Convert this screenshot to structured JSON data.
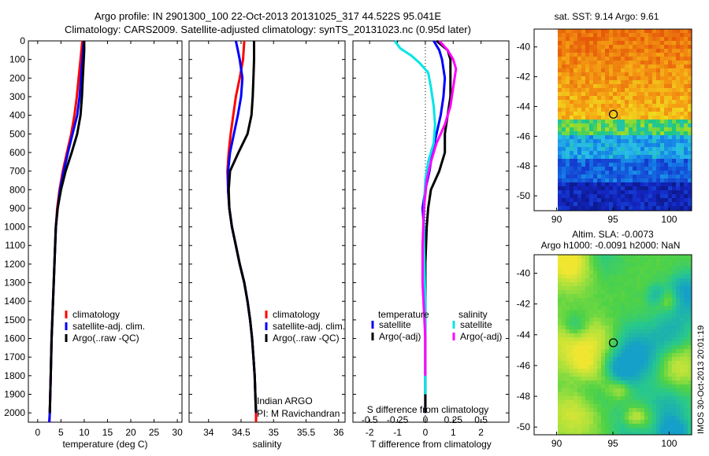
{
  "header": {
    "title_line1": "Argo profile: IN 2901300_100 22-Oct-2013 20131025_317 44.522S 95.041E",
    "title_line2": "Climatology: CARS2009. Satellite-adjusted climatology: synTS_20131023.nc (0.95d later)"
  },
  "footer": {
    "vertical_text": "IMOS 30-Oct-2013 20:01:19"
  },
  "colors": {
    "climatology": "#ff0000",
    "satellite_clim": "#0000ff",
    "argo": "#000000",
    "sal_satellite": "#00e5e5",
    "sal_argo": "#ff00ff"
  },
  "chart_data": [
    {
      "type": "line",
      "id": "temperature",
      "xlabel": "temperature (deg C)",
      "ylabel": "",
      "xlim": [
        -2,
        31
      ],
      "ylim": [
        2050,
        0
      ],
      "xticks": [
        0,
        5,
        10,
        15,
        20,
        25,
        30
      ],
      "yticks": [
        0,
        100,
        200,
        300,
        400,
        500,
        600,
        700,
        800,
        900,
        1000,
        1100,
        1200,
        1300,
        1400,
        1500,
        1600,
        1700,
        1800,
        1900,
        2000
      ],
      "legend": [
        "climatology",
        "satellite-adj. clim.",
        "Argo(..raw -QC)"
      ],
      "series": [
        {
          "name": "climatology",
          "color": "#ff0000",
          "points": [
            [
              9.6,
              0
            ],
            [
              9.2,
              100
            ],
            [
              8.8,
              200
            ],
            [
              8.4,
              300
            ],
            [
              7.9,
              400
            ],
            [
              7.2,
              500
            ],
            [
              6.3,
              600
            ],
            [
              5.4,
              700
            ],
            [
              4.7,
              800
            ],
            [
              4.2,
              900
            ],
            [
              3.9,
              1000
            ],
            [
              3.6,
              1200
            ],
            [
              3.3,
              1400
            ],
            [
              3.0,
              1600
            ],
            [
              2.8,
              1800
            ],
            [
              2.6,
              2000
            ],
            [
              2.5,
              2050
            ]
          ]
        },
        {
          "name": "satellite-adj. clim.",
          "color": "#0000ff",
          "points": [
            [
              9.9,
              0
            ],
            [
              9.6,
              100
            ],
            [
              9.3,
              200
            ],
            [
              9.0,
              300
            ],
            [
              8.5,
              400
            ],
            [
              7.5,
              500
            ],
            [
              6.5,
              600
            ],
            [
              5.6,
              700
            ],
            [
              4.8,
              800
            ],
            [
              4.3,
              900
            ],
            [
              3.9,
              1000
            ],
            [
              3.6,
              1200
            ],
            [
              3.3,
              1400
            ],
            [
              3.0,
              1600
            ],
            [
              2.8,
              1800
            ],
            [
              2.6,
              2000
            ],
            [
              2.5,
              2050
            ]
          ]
        },
        {
          "name": "Argo(..raw -QC)",
          "color": "#000000",
          "points": [
            [
              10.0,
              0
            ],
            [
              10.0,
              50
            ],
            [
              9.9,
              100
            ],
            [
              9.7,
              200
            ],
            [
              9.5,
              300
            ],
            [
              9.2,
              400
            ],
            [
              8.5,
              500
            ],
            [
              7.3,
              600
            ],
            [
              6.0,
              700
            ],
            [
              5.0,
              800
            ],
            [
              4.3,
              900
            ],
            [
              3.9,
              1000
            ],
            [
              3.6,
              1200
            ],
            [
              3.3,
              1400
            ],
            [
              3.0,
              1600
            ],
            [
              2.8,
              1800
            ],
            [
              2.6,
              2000
            ]
          ]
        }
      ]
    },
    {
      "type": "line",
      "id": "salinity",
      "xlabel": "salinity",
      "ylabel": "",
      "xlim": [
        33.7,
        36.1
      ],
      "ylim": [
        2050,
        0
      ],
      "xticks": [
        34,
        34.5,
        35,
        35.5,
        36
      ],
      "legend": [
        "climatology",
        "satellite-adj. clim.",
        "Argo(..raw -QC)"
      ],
      "annotation_line1": "Indian ARGO",
      "annotation_line2": "PI: M Ravichandran",
      "series": [
        {
          "name": "climatology",
          "color": "#ff0000",
          "points": [
            [
              34.55,
              0
            ],
            [
              34.53,
              100
            ],
            [
              34.48,
              200
            ],
            [
              34.42,
              300
            ],
            [
              34.38,
              400
            ],
            [
              34.34,
              500
            ],
            [
              34.31,
              600
            ],
            [
              34.29,
              700
            ],
            [
              34.3,
              800
            ],
            [
              34.32,
              900
            ],
            [
              34.36,
              1000
            ],
            [
              34.42,
              1100
            ],
            [
              34.48,
              1200
            ],
            [
              34.55,
              1300
            ],
            [
              34.6,
              1400
            ],
            [
              34.64,
              1500
            ],
            [
              34.67,
              1600
            ],
            [
              34.69,
              1700
            ],
            [
              34.71,
              1800
            ],
            [
              34.72,
              1900
            ],
            [
              34.73,
              2000
            ],
            [
              34.73,
              2050
            ]
          ]
        },
        {
          "name": "satellite-adj. clim.",
          "color": "#0000ff",
          "points": [
            [
              34.42,
              0
            ],
            [
              34.45,
              50
            ],
            [
              34.48,
              100
            ],
            [
              34.52,
              200
            ],
            [
              34.5,
              300
            ],
            [
              34.45,
              400
            ],
            [
              34.39,
              500
            ],
            [
              34.33,
              600
            ],
            [
              34.3,
              700
            ],
            [
              34.3,
              800
            ],
            [
              34.32,
              900
            ],
            [
              34.36,
              1000
            ],
            [
              34.42,
              1100
            ],
            [
              34.48,
              1200
            ],
            [
              34.55,
              1300
            ],
            [
              34.6,
              1400
            ],
            [
              34.64,
              1500
            ],
            [
              34.67,
              1600
            ],
            [
              34.69,
              1700
            ],
            [
              34.71,
              1800
            ],
            [
              34.72,
              1900
            ],
            [
              34.73,
              2000
            ]
          ]
        },
        {
          "name": "Argo(..raw -QC)",
          "color": "#000000",
          "points": [
            [
              34.7,
              0
            ],
            [
              34.7,
              50
            ],
            [
              34.7,
              100
            ],
            [
              34.69,
              200
            ],
            [
              34.68,
              300
            ],
            [
              34.66,
              400
            ],
            [
              34.6,
              500
            ],
            [
              34.46,
              600
            ],
            [
              34.33,
              700
            ],
            [
              34.31,
              800
            ],
            [
              34.32,
              900
            ],
            [
              34.36,
              1000
            ],
            [
              34.42,
              1100
            ],
            [
              34.48,
              1200
            ],
            [
              34.55,
              1300
            ],
            [
              34.6,
              1400
            ],
            [
              34.64,
              1500
            ],
            [
              34.67,
              1600
            ],
            [
              34.69,
              1700
            ],
            [
              34.71,
              1800
            ],
            [
              34.72,
              1900
            ],
            [
              34.73,
              2000
            ]
          ]
        }
      ]
    },
    {
      "type": "line",
      "id": "difference",
      "xlabel": "T difference from climatology",
      "xlabel_top": "S difference from climatology",
      "ylabel": "",
      "xlim": [
        -2.6,
        3.0
      ],
      "ylim": [
        2050,
        0
      ],
      "xticks_bottom": [
        -2,
        -1,
        0,
        1,
        2
      ],
      "xticks_top": [
        "-0.5",
        "-0.25",
        "0",
        "0.25",
        "0.5"
      ],
      "legend_header_temperature": "temperature",
      "legend_header_salinity": "salinity",
      "legend": [
        "satellite",
        "Argo(-adj)",
        "satellite",
        "Argo(-adj)"
      ],
      "series": [
        {
          "name": "temperature satellite",
          "color": "#0000ff",
          "points": [
            [
              0.3,
              0
            ],
            [
              0.5,
              50
            ],
            [
              0.6,
              100
            ],
            [
              0.7,
              200
            ],
            [
              0.65,
              300
            ],
            [
              0.55,
              400
            ],
            [
              0.4,
              500
            ],
            [
              0.25,
              600
            ],
            [
              0.15,
              700
            ],
            [
              0.0,
              800
            ],
            [
              -0.1,
              900
            ],
            [
              -0.05,
              1000
            ],
            [
              0,
              1200
            ],
            [
              0,
              2000
            ]
          ]
        },
        {
          "name": "temperature Argo(-adj)",
          "color": "#000000",
          "points": [
            [
              0.4,
              0
            ],
            [
              0.8,
              50
            ],
            [
              0.9,
              100
            ],
            [
              0.9,
              200
            ],
            [
              0.9,
              300
            ],
            [
              0.8,
              400
            ],
            [
              0.7,
              500
            ],
            [
              0.7,
              600
            ],
            [
              0.5,
              700
            ],
            [
              0.2,
              800
            ],
            [
              0.1,
              900
            ],
            [
              0.05,
              1000
            ],
            [
              0,
              1200
            ],
            [
              0,
              2000
            ]
          ]
        },
        {
          "name": "salinity satellite",
          "color": "#00e5e5",
          "points": [
            [
              -1.1,
              0
            ],
            [
              -0.9,
              40
            ],
            [
              -0.5,
              80
            ],
            [
              -0.2,
              120
            ],
            [
              0.1,
              170
            ],
            [
              0.2,
              250
            ],
            [
              0.3,
              350
            ],
            [
              0.35,
              450
            ],
            [
              0.3,
              550
            ],
            [
              0.1,
              650
            ],
            [
              0.0,
              750
            ],
            [
              -0.05,
              900
            ],
            [
              -0.05,
              1100
            ],
            [
              0,
              1400
            ],
            [
              0,
              1900
            ]
          ]
        },
        {
          "name": "salinity Argo(-adj)",
          "color": "#ff00ff",
          "points": [
            [
              0.5,
              0
            ],
            [
              0.8,
              50
            ],
            [
              1.0,
              100
            ],
            [
              1.1,
              150
            ],
            [
              1.0,
              250
            ],
            [
              0.9,
              350
            ],
            [
              0.7,
              450
            ],
            [
              0.4,
              550
            ],
            [
              0.2,
              650
            ],
            [
              0.05,
              750
            ],
            [
              -0.05,
              900
            ],
            [
              -0.1,
              1100
            ],
            [
              -0.1,
              1300
            ],
            [
              -0.05,
              1450
            ],
            [
              0,
              1600
            ],
            [
              0,
              1800
            ]
          ]
        }
      ]
    },
    {
      "type": "heatmap",
      "id": "sst_map",
      "title": "sat. SST: 9.14  Argo: 9.61",
      "xlim": [
        88,
        102
      ],
      "ylim": [
        -51,
        -38.8
      ],
      "xticks": [
        90,
        95,
        100
      ],
      "yticks": [
        -40,
        -42,
        -44,
        -46,
        -48,
        -50
      ],
      "marker": {
        "lon": 95.04,
        "lat": -44.52
      }
    },
    {
      "type": "heatmap",
      "id": "sla_map",
      "title_line1": "Altim. SLA: -0.0073",
      "title_line2": "Argo h1000: -0.0091  h2000: NaN",
      "xlim": [
        88,
        102
      ],
      "ylim": [
        -50.5,
        -38.8
      ],
      "xticks": [
        90,
        95,
        100
      ],
      "yticks": [
        -40,
        -42,
        -44,
        -46,
        -48,
        -50
      ],
      "marker": {
        "lon": 95.04,
        "lat": -44.52
      }
    }
  ]
}
